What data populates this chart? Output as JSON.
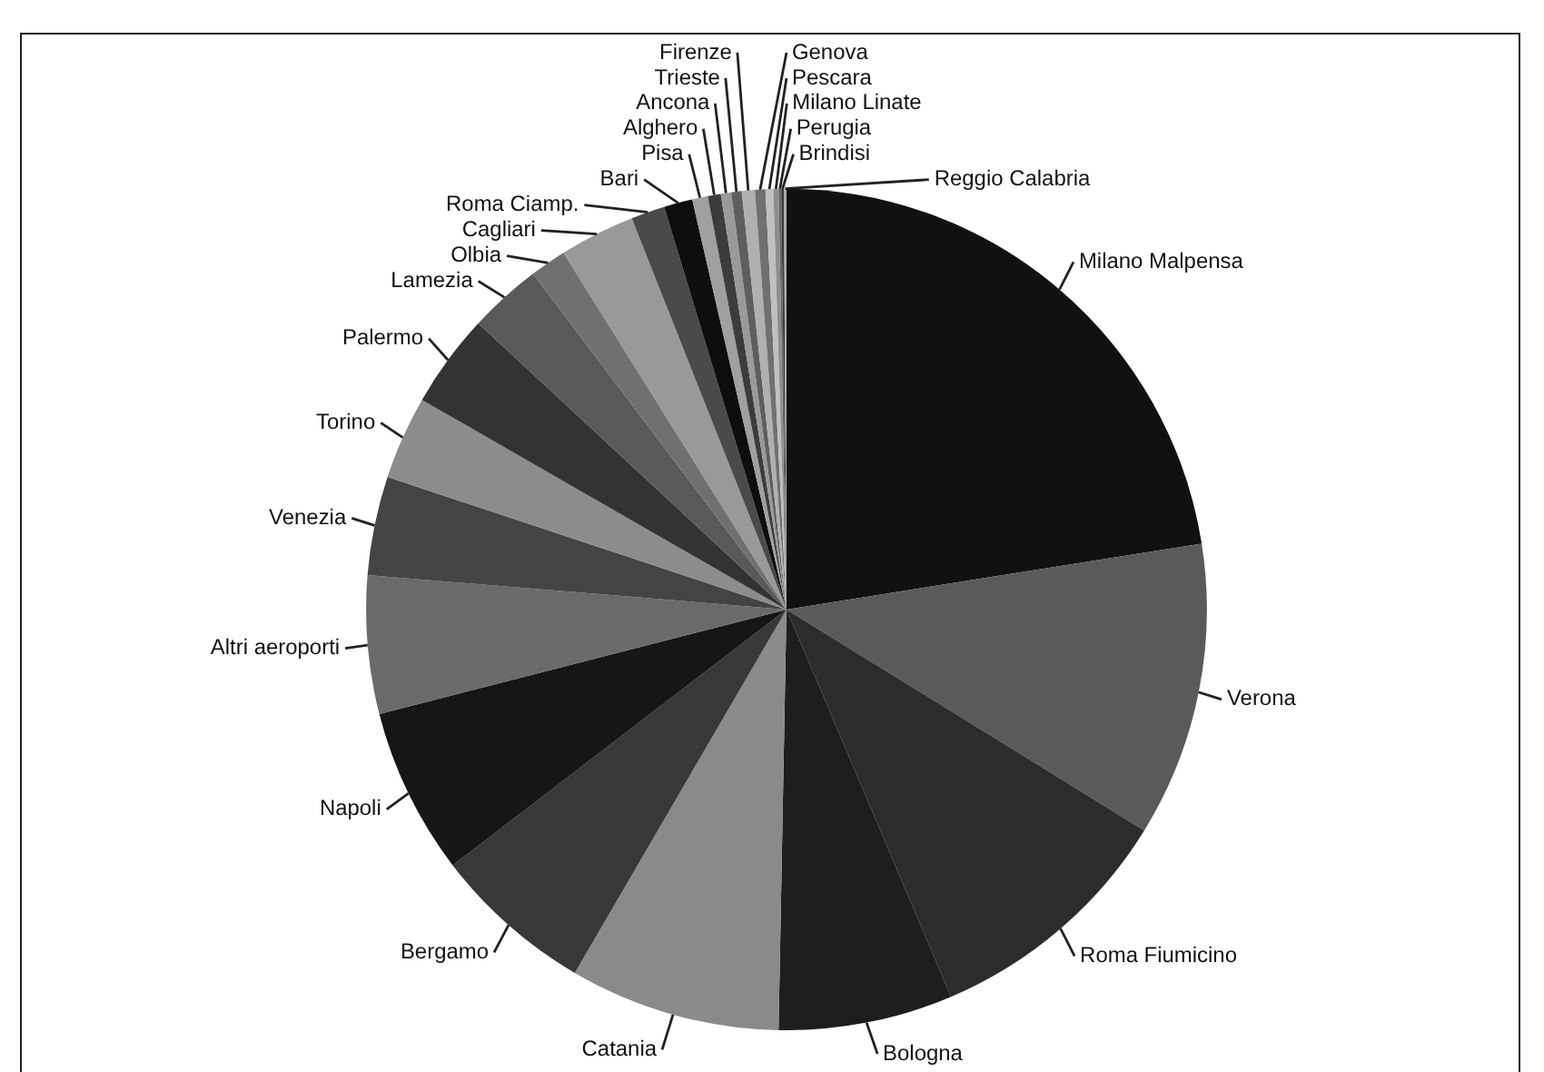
{
  "chart_data": {
    "type": "pie",
    "categories": [
      "Milano Malpensa",
      "Verona",
      "Roma Fiumicino",
      "Bologna",
      "Catania",
      "Bergamo",
      "Napoli",
      "Altri aeroporti",
      "Venezia",
      "Torino",
      "Palermo",
      "Lamezia",
      "Olbia",
      "Cagliari",
      "Roma Ciamp.",
      "Bari",
      "Pisa",
      "Alghero",
      "Ancona",
      "Trieste",
      "Firenze",
      "Genova",
      "Pescara",
      "Milano Linate",
      "Perugia",
      "Brindisi",
      "Reggio Calabria"
    ],
    "values": [
      22.5,
      11.3,
      9.8,
      6.7,
      8.1,
      6.2,
      6.4,
      5.3,
      3.8,
      3.2,
      3.6,
      2.8,
      1.4,
      2.9,
      1.3,
      1.1,
      0.6,
      0.5,
      0.4,
      0.4,
      0.5,
      0.4,
      0.3,
      0.2,
      0.1,
      0.1,
      0.1
    ],
    "colors": [
      "#111111",
      "#5a5a5a",
      "#2c2c2c",
      "#1e1e1e",
      "#8a8a8a",
      "#383838",
      "#161616",
      "#6a6a6a",
      "#444444",
      "#8c8c8c",
      "#333333",
      "#595959",
      "#707070",
      "#999999",
      "#4a4a4a",
      "#0e0e0e",
      "#a0a0a0",
      "#3c3c3c",
      "#9a9a9a",
      "#5e5e5e",
      "#b0b0b0",
      "#707070",
      "#c0c0c0",
      "#8e8e8e",
      "#666666",
      "#3a3a3a",
      "#aaaaaa"
    ]
  }
}
